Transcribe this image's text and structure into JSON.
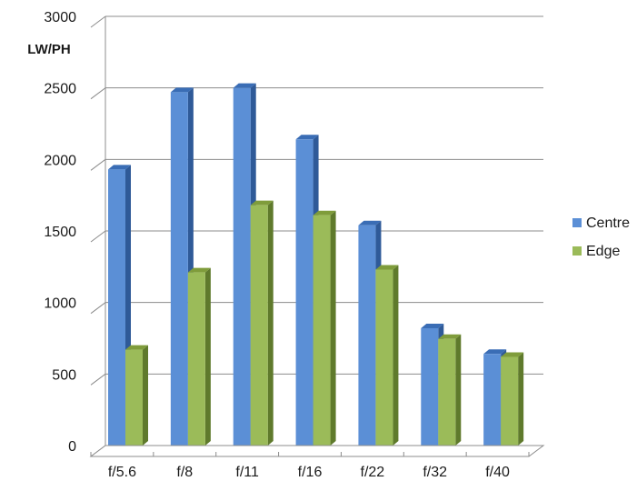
{
  "chart_data": {
    "type": "bar",
    "style": "3d-clustered-column",
    "categories": [
      "f/5.6",
      "f/8",
      "f/11",
      "f/16",
      "f/22",
      "f/32",
      "f/40"
    ],
    "series": [
      {
        "name": "Centre",
        "values": [
          1930,
          2470,
          2500,
          2140,
          1540,
          820,
          640
        ],
        "color": "#5b8fd6",
        "side_color": "#2f5a98",
        "top_color": "#3a6db5"
      },
      {
        "name": "Edge",
        "values": [
          670,
          1210,
          1680,
          1610,
          1230,
          745,
          620
        ],
        "color": "#9bbb59",
        "side_color": "#5f7a2c",
        "top_color": "#7f9c3b"
      }
    ],
    "ylabel": "LW/PH",
    "ylim": [
      0,
      3000
    ],
    "yticks": [
      "0",
      "500",
      "1000",
      "1500",
      "2000",
      "2500",
      "3000"
    ],
    "grid": true,
    "legend_position": "right"
  }
}
